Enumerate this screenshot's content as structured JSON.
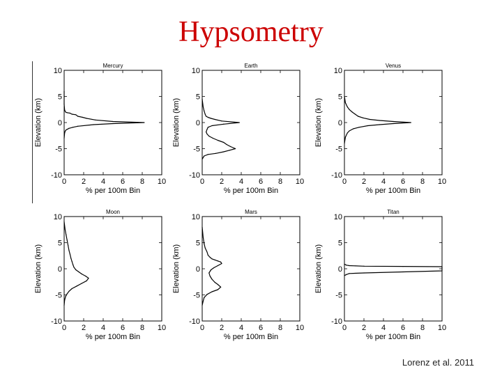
{
  "slide": {
    "title": "Hypsometry",
    "credit": "Lorenz et al. 2011"
  },
  "colors": {
    "title": "#cc0000",
    "line": "#000000"
  },
  "chart_data": [
    {
      "type": "line",
      "title": "Mercury",
      "xlabel": "% per 100m Bin",
      "ylabel": "Elevation (km)",
      "xlim": [
        0,
        10
      ],
      "ylim": [
        -10,
        10
      ],
      "xticks": [
        0,
        2,
        4,
        6,
        8,
        10
      ],
      "yticks": [
        10,
        5,
        0,
        -5,
        -10
      ],
      "grid": false,
      "series": [
        {
          "x": [
            0,
            0,
            0.05,
            0.1,
            0.15,
            0.3,
            0.6,
            0.8,
            1.2,
            1.4,
            1.9,
            2.3,
            3.2,
            5.0,
            8.2,
            5.0,
            3.0,
            1.4,
            0.9,
            0.5,
            0.3,
            0.15,
            0.1,
            0.05,
            0
          ],
          "y": [
            6,
            3.5,
            2.4,
            2.2,
            2.0,
            1.9,
            1.8,
            1.6,
            1.5,
            1.2,
            1.0,
            0.8,
            0.5,
            0.2,
            0.0,
            -0.2,
            -0.4,
            -0.7,
            -0.9,
            -1.1,
            -1.3,
            -1.5,
            -1.7,
            -2.0,
            -3.0
          ]
        }
      ]
    },
    {
      "type": "line",
      "title": "Earth",
      "xlabel": "% per 100m Bin",
      "ylabel": "Elevation (km)",
      "xlim": [
        0,
        10
      ],
      "ylim": [
        -10,
        10
      ],
      "xticks": [
        0,
        2,
        4,
        6,
        8,
        10
      ],
      "yticks": [
        10,
        5,
        0,
        -5,
        -10
      ],
      "grid": false,
      "series": [
        {
          "x": [
            0,
            0.1,
            0.2,
            0.3,
            0.4,
            0.6,
            0.9,
            1.3,
            2.0,
            3.8,
            2.2,
            1.0,
            0.6,
            0.5,
            0.4,
            0.5,
            0.7,
            1.1,
            1.6,
            2.2,
            2.5,
            2.9,
            3.4,
            2.8,
            2.2,
            1.4,
            0.6,
            0.2,
            0
          ],
          "y": [
            4.5,
            3.0,
            2.2,
            1.6,
            1.2,
            1.0,
            0.8,
            0.6,
            0.3,
            0.0,
            -0.3,
            -0.6,
            -0.9,
            -1.3,
            -1.8,
            -2.2,
            -2.6,
            -3.0,
            -3.4,
            -3.8,
            -4.2,
            -4.6,
            -5.0,
            -5.3,
            -5.6,
            -5.9,
            -6.1,
            -6.4,
            -7.0
          ]
        }
      ]
    },
    {
      "type": "line",
      "title": "Venus",
      "xlabel": "% per 100m Bin",
      "ylabel": "Elevation (km)",
      "xlim": [
        0,
        10
      ],
      "ylim": [
        -10,
        10
      ],
      "xticks": [
        0,
        2,
        4,
        6,
        8,
        10
      ],
      "yticks": [
        10,
        5,
        0,
        -5,
        -10
      ],
      "grid": false,
      "series": [
        {
          "x": [
            0,
            0.1,
            0.3,
            0.5,
            0.8,
            1.1,
            1.4,
            1.9,
            2.6,
            3.6,
            5.0,
            6.8,
            5.0,
            3.6,
            2.4,
            1.5,
            0.9,
            0.5,
            0.3,
            0.1,
            0
          ],
          "y": [
            5,
            3.8,
            3.0,
            2.5,
            2.0,
            1.6,
            1.2,
            0.9,
            0.6,
            0.4,
            0.2,
            0.0,
            -0.2,
            -0.4,
            -0.6,
            -0.9,
            -1.2,
            -1.6,
            -2.0,
            -2.8,
            -4.0
          ]
        }
      ]
    },
    {
      "type": "line",
      "title": "Moon",
      "xlabel": "% per 100m Bin",
      "ylabel": "Elevation (km)",
      "xlim": [
        0,
        10
      ],
      "ylim": [
        -10,
        10
      ],
      "xticks": [
        0,
        2,
        4,
        6,
        8,
        10
      ],
      "yticks": [
        10,
        5,
        0,
        -5,
        -10
      ],
      "grid": false,
      "series": [
        {
          "x": [
            0,
            0.1,
            0.2,
            0.3,
            0.4,
            0.5,
            0.6,
            0.7,
            0.8,
            0.9,
            1.0,
            1.2,
            1.5,
            1.8,
            2.2,
            2.5,
            2.3,
            1.8,
            1.3,
            0.8,
            0.5,
            0.3,
            0.15,
            0.05,
            0
          ],
          "y": [
            9,
            7.5,
            6.5,
            5.5,
            4.5,
            3.5,
            2.8,
            2.0,
            1.4,
            0.8,
            0.3,
            -0.2,
            -0.6,
            -1.0,
            -1.4,
            -1.8,
            -2.3,
            -2.8,
            -3.3,
            -3.8,
            -4.3,
            -4.8,
            -5.3,
            -6.0,
            -7.0
          ]
        }
      ]
    },
    {
      "type": "line",
      "title": "Mars",
      "xlabel": "% per 100m Bin",
      "ylabel": "Elevation (km)",
      "xlim": [
        0,
        10
      ],
      "ylim": [
        -10,
        10
      ],
      "xticks": [
        0,
        2,
        4,
        6,
        8,
        10
      ],
      "yticks": [
        10,
        5,
        0,
        -5,
        -10
      ],
      "grid": false,
      "series": [
        {
          "x": [
            0,
            0.1,
            0.2,
            0.3,
            0.5,
            0.6,
            0.8,
            1.0,
            1.3,
            1.6,
            1.9,
            2.0,
            1.6,
            1.2,
            0.9,
            0.7,
            0.8,
            1.0,
            1.3,
            1.6,
            1.9,
            1.6,
            1.0,
            0.5,
            0.2,
            0.1,
            0
          ],
          "y": [
            8,
            6,
            4.8,
            4.0,
            3.2,
            2.6,
            2.2,
            1.9,
            1.7,
            1.5,
            1.3,
            1.0,
            0.6,
            0.2,
            -0.2,
            -0.8,
            -1.4,
            -2.0,
            -2.6,
            -3.0,
            -3.5,
            -4.0,
            -4.4,
            -4.9,
            -5.5,
            -6.2,
            -7.0
          ]
        }
      ]
    },
    {
      "type": "line",
      "title": "Titan",
      "xlabel": "% per 100m Bin",
      "ylabel": "Elevation (km)",
      "xlim": [
        0,
        10
      ],
      "ylim": [
        -10,
        10
      ],
      "xticks": [
        0,
        2,
        4,
        6,
        8,
        10
      ],
      "yticks": [
        10,
        5,
        0,
        -5,
        -10
      ],
      "grid": false,
      "series": [
        {
          "x": [
            0,
            0.2,
            0.5,
            2.0,
            6.0,
            10.0,
            10.0,
            6.0,
            2.0,
            0.5,
            0.2,
            0
          ],
          "y": [
            0.9,
            0.7,
            0.6,
            0.5,
            0.45,
            0.4,
            -0.4,
            -0.6,
            -0.8,
            -0.9,
            -1.1,
            -1.3
          ]
        }
      ]
    }
  ]
}
